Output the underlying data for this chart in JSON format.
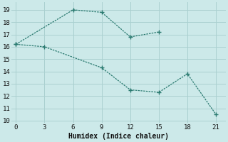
{
  "xlabel": "Humidex (Indice chaleur)",
  "bg_color": "#cce9e9",
  "grid_color": "#aad0d0",
  "line_color": "#2a7a70",
  "line1_x": [
    0,
    6,
    9,
    12,
    15
  ],
  "line1_y": [
    16.2,
    19.0,
    18.8,
    16.8,
    17.2
  ],
  "line2_x": [
    0,
    3,
    9,
    12,
    15,
    18,
    21
  ],
  "line2_y": [
    16.2,
    16.0,
    14.3,
    12.5,
    12.3,
    13.8,
    10.5
  ],
  "xlim": [
    -0.5,
    22
  ],
  "ylim": [
    9.8,
    19.6
  ],
  "xticks": [
    0,
    3,
    6,
    9,
    12,
    15,
    18,
    21
  ],
  "yticks": [
    10,
    11,
    12,
    13,
    14,
    15,
    16,
    17,
    18,
    19
  ],
  "tick_fontsize": 6.5,
  "xlabel_fontsize": 7.0
}
